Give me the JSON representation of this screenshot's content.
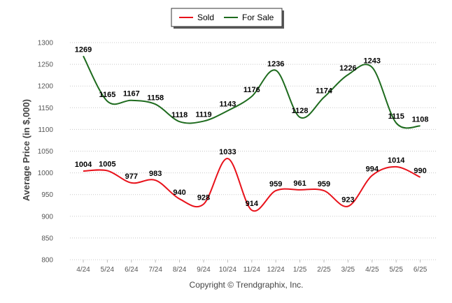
{
  "chart_data": {
    "type": "line",
    "categories": [
      "4/24",
      "5/24",
      "6/24",
      "7/24",
      "8/24",
      "9/24",
      "10/24",
      "11/24",
      "12/24",
      "1/25",
      "2/25",
      "3/25",
      "4/25",
      "5/25",
      "6/25"
    ],
    "series": [
      {
        "name": "Sold",
        "color": "#e8121b",
        "values": [
          1004,
          1005,
          977,
          983,
          940,
          928,
          1033,
          914,
          959,
          961,
          959,
          923,
          994,
          1014,
          990
        ]
      },
      {
        "name": "For Sale",
        "color": "#1e6b1e",
        "values": [
          1269,
          1165,
          1167,
          1158,
          1118,
          1119,
          1143,
          1176,
          1236,
          1128,
          1174,
          1226,
          1243,
          1115,
          1108
        ]
      }
    ],
    "ylabel": "Average Price (in $,000)",
    "xlabel": "",
    "ylim": [
      800,
      1300
    ],
    "yticks": [
      800,
      850,
      900,
      950,
      1000,
      1050,
      1100,
      1150,
      1200,
      1250,
      1300
    ],
    "grid": "horizontal-dotted",
    "legend": {
      "position": "top-center",
      "entries": [
        "Sold",
        "For Sale"
      ]
    },
    "footer": "Copyright © Trendgraphix, Inc."
  }
}
